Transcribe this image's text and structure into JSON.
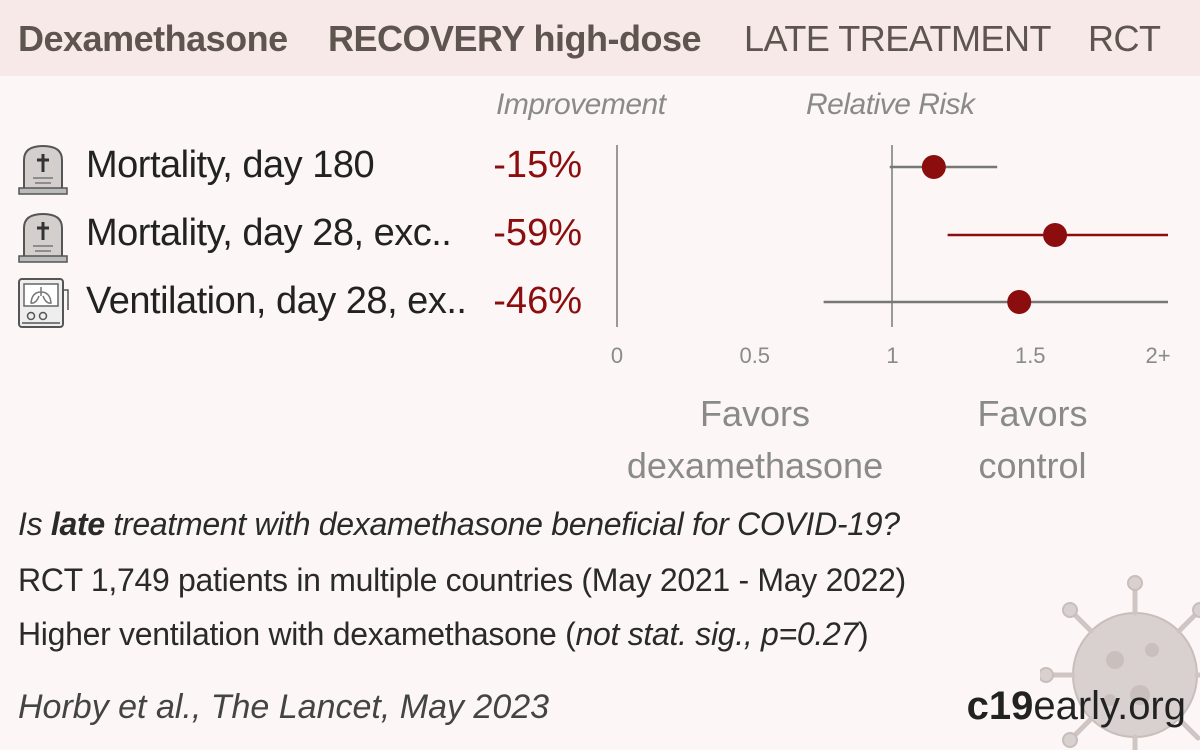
{
  "header": {
    "drug": "Dexamethasone",
    "trial": "RECOVERY high-dose",
    "stage": "LATE TREATMENT",
    "design": "RCT"
  },
  "columns": {
    "improvement": "Improvement",
    "relative_risk": "Relative Risk"
  },
  "rows": [
    {
      "label": "Mortality, day 180",
      "improvement": "-15%",
      "icon": "tombstone-icon"
    },
    {
      "label": "Mortality, day 28, exc..",
      "improvement": "-59%",
      "icon": "tombstone-icon"
    },
    {
      "label": "Ventilation, day 28, ex..",
      "improvement": "-46%",
      "icon": "ventilator-icon"
    }
  ],
  "favors": {
    "left_line1": "Favors",
    "left_line2": "dexamethasone",
    "right_line1": "Favors",
    "right_line2": "control"
  },
  "summary": {
    "q_pre": "Is ",
    "q_bold": "late",
    "q_post": " treatment with dexamethasone beneficial for COVID-19?",
    "line2": "RCT 1,749 patients in multiple countries (May 2021 - May 2022)",
    "line3_pre": "Higher ventilation with dexamethasone (",
    "line3_it": "not stat. sig., p=0.27",
    "line3_post": ")"
  },
  "citation": "Horby et al., The Lancet, May 2023",
  "brand": {
    "bold": "c19",
    "rest": "early.org"
  },
  "colors": {
    "accent": "#8b0d0d",
    "header_bg": "#f6e9e7",
    "background": "#fcf6f6"
  },
  "chart_data": {
    "type": "forest",
    "xlabel": "Relative Risk",
    "xticks": [
      "0",
      "0.5",
      "1",
      "1.5",
      "2+"
    ],
    "xlim": [
      0,
      2
    ],
    "reference_line": 1,
    "series": [
      {
        "name": "Mortality, day 180",
        "rr": 1.15,
        "ci_low": 0.99,
        "ci_high": 1.38,
        "color": "#8b0d0d",
        "ci_color": "#777777"
      },
      {
        "name": "Mortality, day 28, exc..",
        "rr": 1.59,
        "ci_low": 1.2,
        "ci_high": 2.0,
        "color": "#8b0d0d",
        "ci_color": "#8b0d0d"
      },
      {
        "name": "Ventilation, day 28, ex..",
        "rr": 1.46,
        "ci_low": 0.75,
        "ci_high": 2.0,
        "color": "#8b0d0d",
        "ci_color": "#777777"
      }
    ]
  }
}
